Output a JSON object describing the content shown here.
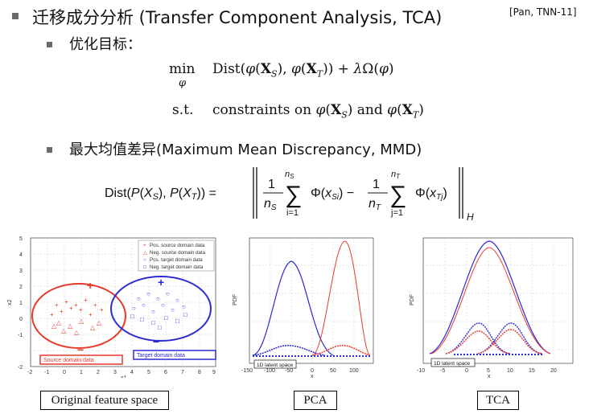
{
  "title": {
    "text": "迁移成分分析 (Transfer Component Analysis, TCA)",
    "citation": "[Pan, TNN-11]"
  },
  "bullets": {
    "objective": "优化目标：",
    "mmd": "最大均值差异(Maximum Mean Discrepancy, MMD)"
  },
  "formulas": {
    "min_word": "min",
    "min_sub": "φ",
    "objective_expr": "Dist(φ(XS), φ(XT)) + λΩ(φ)",
    "st_word": "s.t.",
    "constraint_expr": "constraints on φ(XS) and φ(XT)",
    "mmd_lhs": "Dist(P(XS), P(XT)) =",
    "sum_upper_s": "nS",
    "sum_lower": "i=1",
    "sum_upper_t": "nT",
    "sum_lower_j": "j=1",
    "frac_num": "1",
    "frac_den_s": "nS",
    "frac_den_t": "nT",
    "term_s": "Φ(xSi)",
    "term_t": "Φ(xTj)",
    "norm_sub": "H"
  },
  "figures": {
    "original": {
      "caption": "Original feature space",
      "legend": [
        "Pos. source domain data",
        "Neg. source domain data",
        "Pos. target domain data",
        "Neg. target domain data"
      ],
      "source_label": "Source domain data",
      "target_label": "Target domain data",
      "x_ticks": [
        "-2",
        "-1",
        "0",
        "1",
        "2",
        "3",
        "4",
        "5",
        "6",
        "7",
        "8",
        "9"
      ],
      "y_ticks": [
        "5",
        "4",
        "3",
        "2",
        "1",
        "0",
        "-1",
        "-2"
      ],
      "xlabel": "x1",
      "ylabel": "x2",
      "plus": "+",
      "minus": "−",
      "colors": {
        "source": "#e8392b",
        "target": "#2a2ad6"
      }
    },
    "pca": {
      "caption": "PCA",
      "latent_label": "1D latent space",
      "x_ticks": [
        "-150",
        "-100",
        "-50",
        "0",
        "50",
        "100"
      ],
      "ylabel": "PDF",
      "xlabel": "x"
    },
    "tca": {
      "caption": "TCA",
      "latent_label": "1D latent space",
      "x_ticks": [
        "-10",
        "-5",
        "0",
        "5",
        "10",
        "15",
        "20"
      ],
      "ylabel": "PDF",
      "xlabel": "x"
    }
  }
}
